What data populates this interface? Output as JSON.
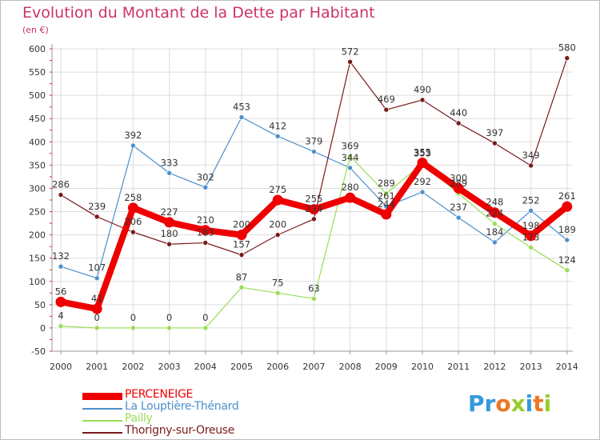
{
  "chart_data": {
    "type": "line",
    "title": "Evolution du Montant de la Dette par Habitant",
    "ylabel": "(en €)",
    "xlabel": "",
    "x": [
      "2000",
      "2001",
      "2002",
      "2003",
      "2004",
      "2005",
      "2006",
      "2007",
      "2008",
      "2009",
      "2010",
      "2011",
      "2012",
      "2013",
      "2014"
    ],
    "ylim": [
      -50,
      600
    ],
    "yticks": [
      "-50",
      "0",
      "50",
      "100",
      "150",
      "200",
      "250",
      "300",
      "350",
      "400",
      "450",
      "500",
      "550",
      "600"
    ],
    "grid": true,
    "legend_position": "bottom-left",
    "series": [
      {
        "name": "PERCENEIGE",
        "color": "#ee0000",
        "emphasis": true,
        "values": [
          56,
          41,
          258,
          227,
          210,
          200,
          275,
          255,
          280,
          244,
          355,
          300,
          248,
          198,
          261
        ],
        "labels": [
          "56",
          "41",
          "258",
          "227",
          "210",
          "200",
          "275",
          "255",
          "280",
          "244",
          "355",
          "300",
          "248",
          "198",
          "261"
        ]
      },
      {
        "name": "La Louptière-Thénard",
        "color": "#4d8fcc",
        "values": [
          132,
          107,
          392,
          333,
          302,
          453,
          412,
          379,
          344,
          261,
          292,
          237,
          184,
          252,
          189
        ],
        "labels": [
          "132",
          "107",
          "392",
          "333",
          "302",
          "453",
          "412",
          "379",
          "344",
          "261",
          "292",
          "237",
          "184",
          "252",
          "189"
        ]
      },
      {
        "name": "Pailly",
        "color": "#99dd55",
        "values": [
          4,
          0,
          0,
          0,
          0,
          87,
          75,
          63,
          369,
          289,
          353,
          289,
          224,
          173,
          124
        ],
        "labels": [
          "4",
          "0",
          "0",
          "0",
          "0",
          "87",
          "75",
          "63",
          "369",
          "289",
          "353",
          "289",
          "224",
          "173",
          "124"
        ]
      },
      {
        "name": "Thorigny-sur-Oreuse",
        "color": "#7a1a1a",
        "values": [
          286,
          239,
          206,
          180,
          183,
          157,
          200,
          234,
          572,
          469,
          490,
          440,
          397,
          349,
          580
        ],
        "labels": [
          "286",
          "239",
          "206",
          "180",
          "183",
          "157",
          "200",
          "234",
          "572",
          "469",
          "490",
          "440",
          "397",
          "349",
          "580"
        ]
      }
    ]
  },
  "logo": {
    "letters": [
      {
        "text": "P",
        "color": "#3399dd"
      },
      {
        "text": "r",
        "color": "#3399dd"
      },
      {
        "text": "o",
        "color": "#ee7722"
      },
      {
        "text": "x",
        "color": "#99cc33"
      },
      {
        "text": "i",
        "color": "#3399dd"
      },
      {
        "text": "t",
        "color": "#ee7722"
      },
      {
        "text": "i",
        "color": "#99cc33"
      }
    ]
  }
}
